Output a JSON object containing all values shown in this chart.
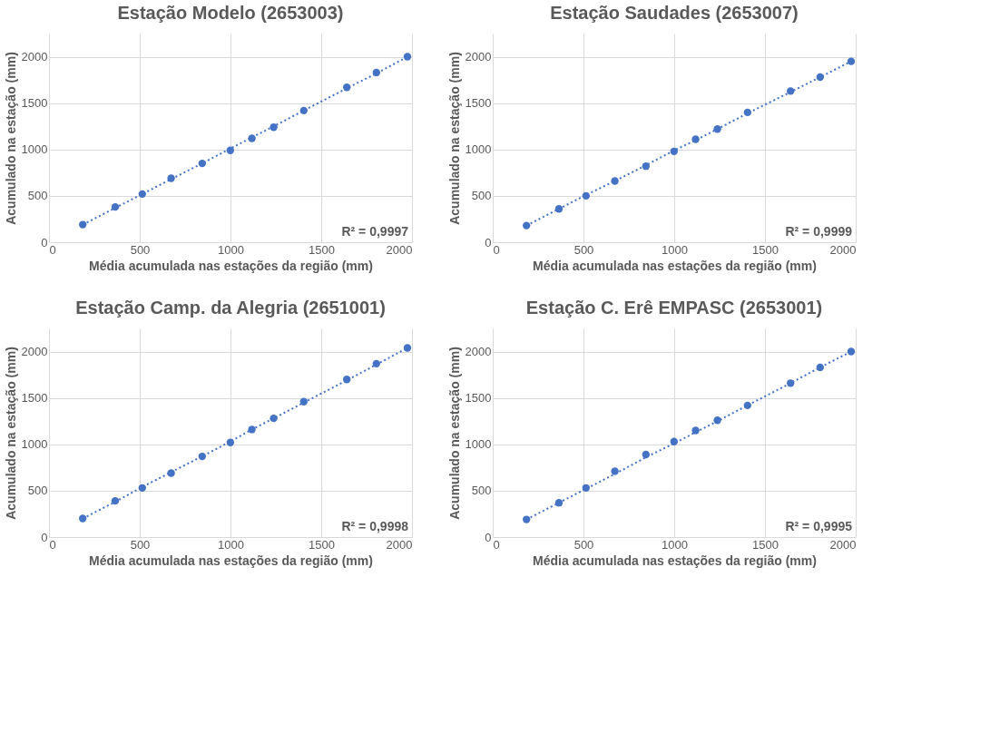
{
  "chart_data": [
    {
      "type": "scatter",
      "title": "Estação Modelo (2653003)",
      "xlabel": "Média acumulada nas estações da região (mm)",
      "ylabel": "Acumulado na estação (mm)",
      "xlim": [
        0,
        2000
      ],
      "xticks": [
        0,
        500,
        1000,
        1500,
        2000
      ],
      "ylim": [
        0,
        2250
      ],
      "yticks": [
        0,
        500,
        1000,
        1500,
        2000
      ],
      "grid": true,
      "marker": "circle",
      "x": [
        186,
        365,
        514,
        673,
        844,
        999,
        1118,
        1238,
        1404,
        1641,
        1804,
        1975
      ],
      "series": [
        {
          "color": "#4472c4",
          "values": [
            190,
            380,
            520,
            690,
            850,
            990,
            1120,
            1240,
            1420,
            1670,
            1830,
            2000
          ]
        },
        {
          "type": "line",
          "line_style": "dotted",
          "marker": "none",
          "color": "#4472c4",
          "values": [
            190,
            370,
            520,
            680,
            850,
            1010,
            1130,
            1250,
            1420,
            1660,
            1820,
            2000
          ]
        }
      ],
      "annotations": [
        "R² = 0,9997"
      ]
    },
    {
      "type": "scatter",
      "title": "Estação Saudades (2653007)",
      "xlabel": "Média acumulada nas estações da região (mm)",
      "ylabel": "Acumulado na estação (mm)",
      "xlim": [
        0,
        2000
      ],
      "xticks": [
        0,
        500,
        1000,
        1500,
        2000
      ],
      "ylim": [
        0,
        2250
      ],
      "yticks": [
        0,
        500,
        1000,
        1500,
        2000
      ],
      "grid": true,
      "marker": "circle",
      "x": [
        186,
        365,
        514,
        673,
        844,
        999,
        1118,
        1238,
        1404,
        1641,
        1804,
        1975
      ],
      "series": [
        {
          "color": "#4472c4",
          "values": [
            180,
            360,
            500,
            660,
            820,
            980,
            1110,
            1220,
            1400,
            1630,
            1780,
            1950
          ]
        },
        {
          "type": "line",
          "line_style": "dotted",
          "marker": "none",
          "color": "#4472c4",
          "values": [
            180,
            360,
            510,
            660,
            830,
            990,
            1100,
            1220,
            1390,
            1620,
            1780,
            1950
          ]
        }
      ],
      "annotations": [
        "R² = 0,9999"
      ]
    },
    {
      "type": "scatter",
      "title": "Estação Camp. da Alegria (2651001)",
      "xlabel": "Média acumulada nas estações da região (mm)",
      "ylabel": "Acumulado na estação (mm)",
      "xlim": [
        0,
        2000
      ],
      "xticks": [
        0,
        500,
        1000,
        1500,
        2000
      ],
      "ylim": [
        0,
        2250
      ],
      "yticks": [
        0,
        500,
        1000,
        1500,
        2000
      ],
      "grid": true,
      "marker": "circle",
      "x": [
        186,
        365,
        514,
        673,
        844,
        999,
        1118,
        1238,
        1404,
        1641,
        1804,
        1975
      ],
      "series": [
        {
          "color": "#4472c4",
          "values": [
            200,
            390,
            530,
            690,
            870,
            1020,
            1160,
            1280,
            1460,
            1700,
            1870,
            2040
          ]
        },
        {
          "type": "line",
          "line_style": "dotted",
          "marker": "none",
          "color": "#4472c4",
          "values": [
            200,
            380,
            540,
            700,
            870,
            1030,
            1160,
            1280,
            1450,
            1690,
            1860,
            2040
          ]
        }
      ],
      "annotations": [
        "R² = 0,9998"
      ]
    },
    {
      "type": "scatter",
      "title": "Estação C. Erê EMPASC (2653001)",
      "xlabel": "Média acumulada nas estações da região (mm)",
      "ylabel": "Acumulado na estação (mm)",
      "xlim": [
        0,
        2000
      ],
      "xticks": [
        0,
        500,
        1000,
        1500,
        2000
      ],
      "ylim": [
        0,
        2250
      ],
      "yticks": [
        0,
        500,
        1000,
        1500,
        2000
      ],
      "grid": true,
      "marker": "circle",
      "x": [
        186,
        365,
        514,
        673,
        844,
        999,
        1118,
        1238,
        1404,
        1641,
        1804,
        1975
      ],
      "series": [
        {
          "color": "#4472c4",
          "values": [
            190,
            370,
            530,
            710,
            890,
            1030,
            1150,
            1260,
            1420,
            1660,
            1830,
            2000
          ]
        },
        {
          "type": "line",
          "line_style": "dotted",
          "marker": "none",
          "color": "#4472c4",
          "values": [
            190,
            370,
            520,
            680,
            860,
            1010,
            1130,
            1250,
            1420,
            1660,
            1830,
            2000
          ]
        }
      ],
      "annotations": [
        "R² = 0,9995"
      ]
    }
  ]
}
